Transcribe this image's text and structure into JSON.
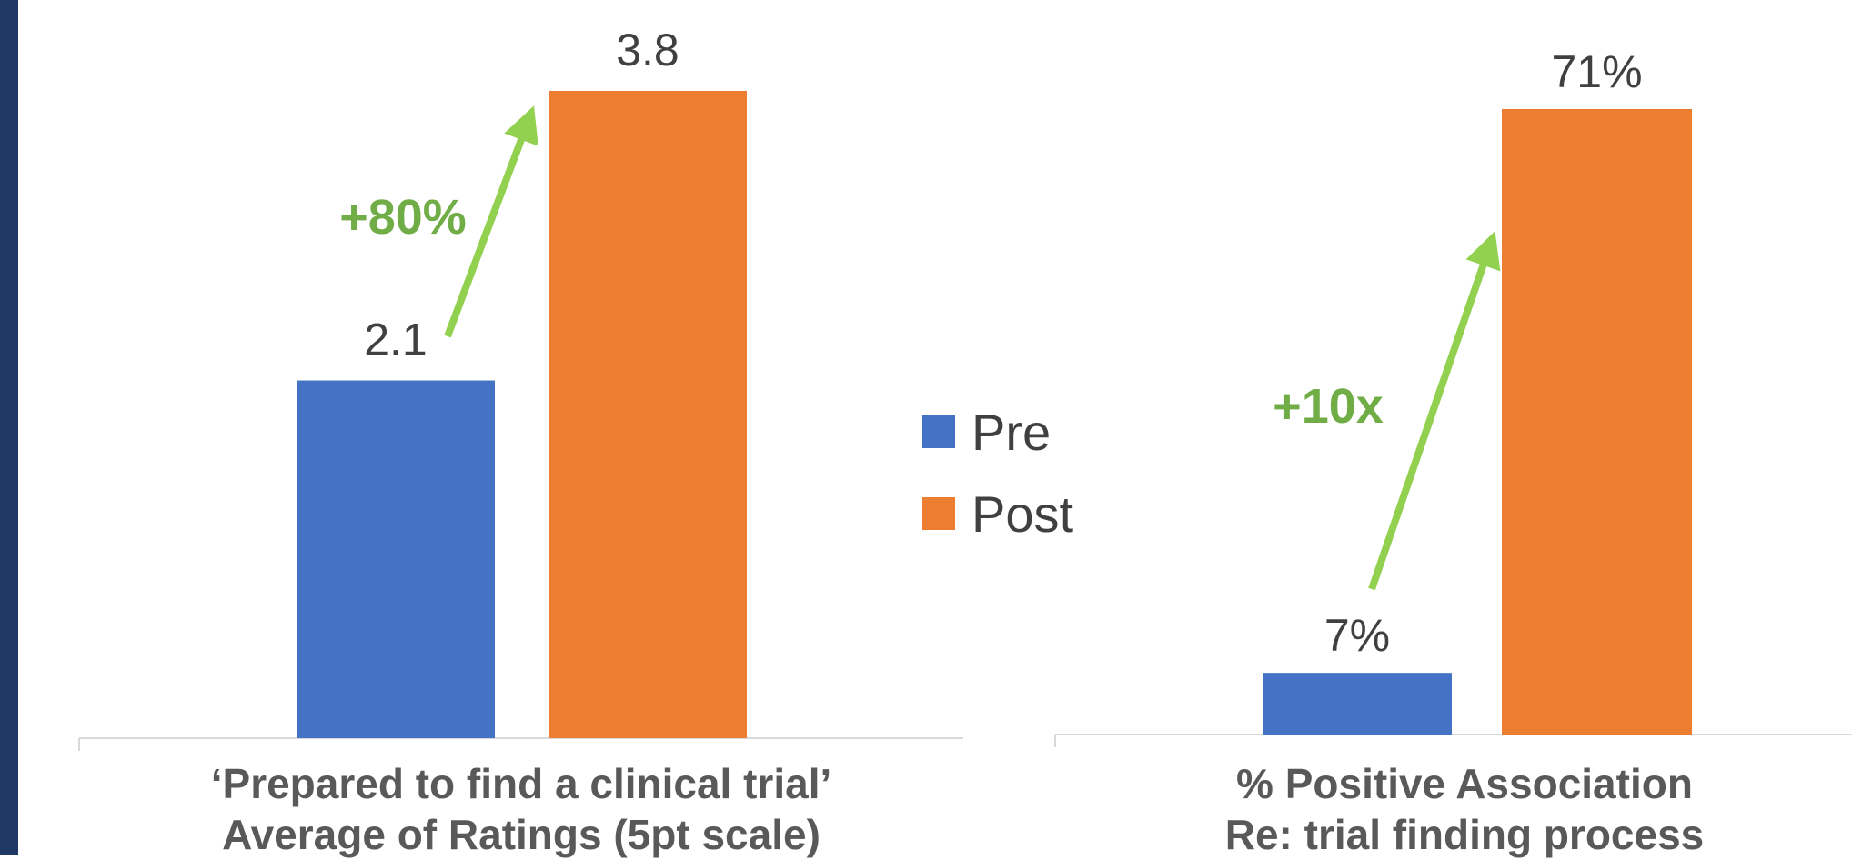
{
  "colors": {
    "pre": "#4472c4",
    "post": "#ed7d31",
    "arrow": "#92d050",
    "annotation": "#70ad47",
    "stripe": "#1f3864"
  },
  "legend": [
    {
      "name": "Pre",
      "color": "#4472c4"
    },
    {
      "name": "Post",
      "color": "#ed7d31"
    }
  ],
  "chart_data": [
    {
      "type": "bar",
      "categories": [
        "Pre",
        "Post"
      ],
      "values": [
        2.1,
        3.8
      ],
      "data_labels": [
        "2.1",
        "3.8"
      ],
      "ylim": [
        0,
        5
      ],
      "annotation": "+80%",
      "caption_line1": "‘Prepared to find a clinical trial’",
      "caption_line2": "Average of Ratings (5pt scale)"
    },
    {
      "type": "bar",
      "categories": [
        "Pre",
        "Post"
      ],
      "values": [
        7,
        71
      ],
      "data_labels": [
        "7%",
        "71%"
      ],
      "ylim": [
        0,
        100
      ],
      "annotation": "+10x",
      "caption_line1": "% Positive Association",
      "caption_line2": "Re: trial finding process"
    }
  ]
}
